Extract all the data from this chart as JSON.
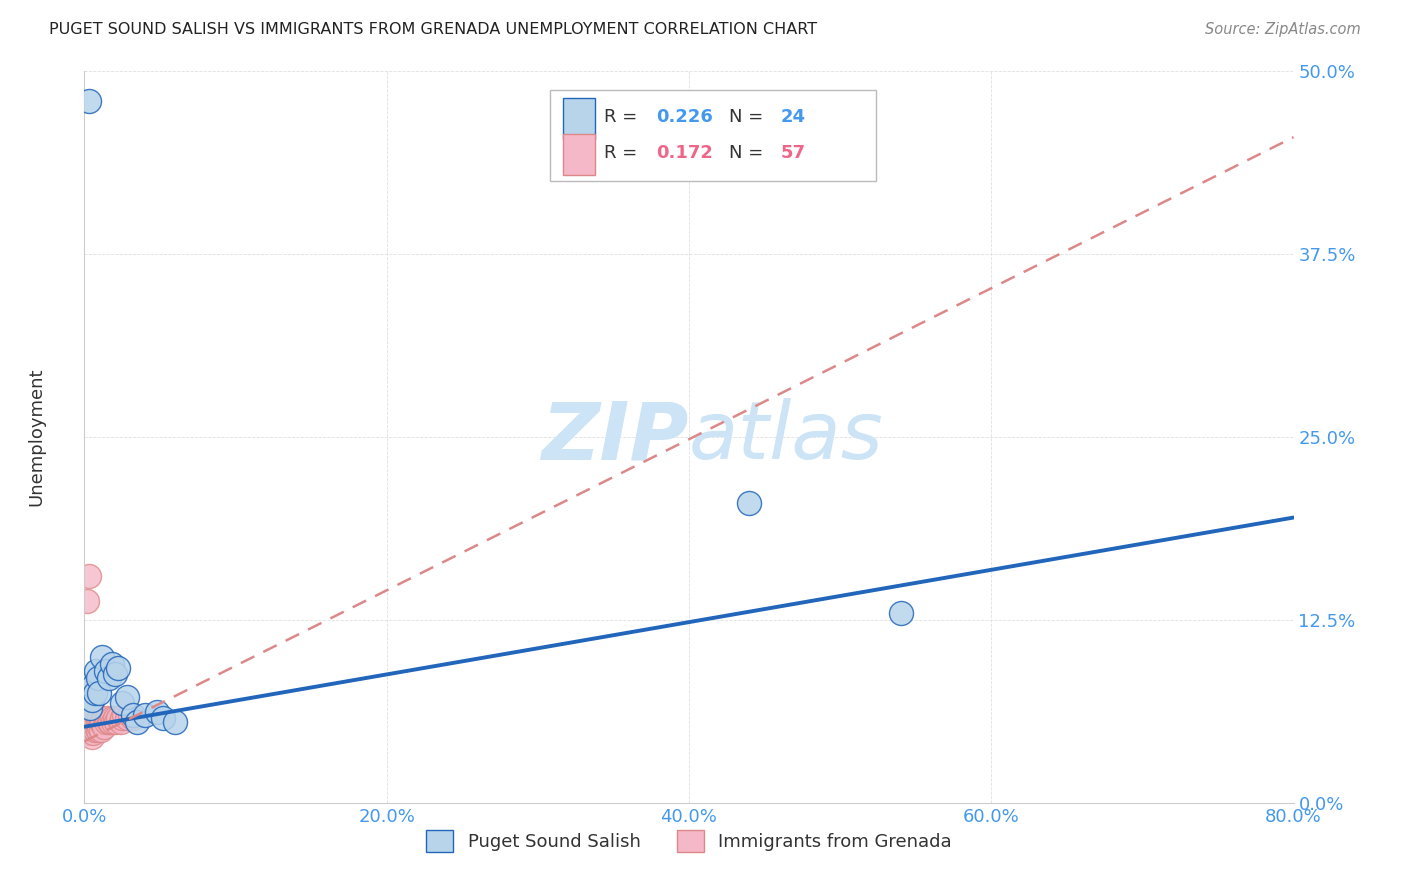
{
  "title": "PUGET SOUND SALISH VS IMMIGRANTS FROM GRENADA UNEMPLOYMENT CORRELATION CHART",
  "source": "Source: ZipAtlas.com",
  "xlabel_ticks": [
    "0.0%",
    "20.0%",
    "40.0%",
    "60.0%",
    "80.0%"
  ],
  "ylabel_ticks": [
    "0.0%",
    "12.5%",
    "25.0%",
    "37.5%",
    "50.0%"
  ],
  "ylabel_label": "Unemployment",
  "xlim": [
    0.0,
    0.8
  ],
  "ylim": [
    0.0,
    0.5
  ],
  "blue_scatter_x": [
    0.003,
    0.004,
    0.005,
    0.006,
    0.007,
    0.008,
    0.009,
    0.01,
    0.012,
    0.014,
    0.016,
    0.018,
    0.02,
    0.022,
    0.025,
    0.028,
    0.032,
    0.035,
    0.04,
    0.048,
    0.052,
    0.06,
    0.44,
    0.54
  ],
  "blue_scatter_y": [
    0.48,
    0.065,
    0.07,
    0.08,
    0.075,
    0.09,
    0.085,
    0.075,
    0.1,
    0.09,
    0.085,
    0.095,
    0.088,
    0.092,
    0.068,
    0.072,
    0.06,
    0.055,
    0.06,
    0.062,
    0.058,
    0.055,
    0.205,
    0.13
  ],
  "pink_scatter_x": [
    0.001,
    0.001,
    0.002,
    0.002,
    0.002,
    0.002,
    0.003,
    0.003,
    0.003,
    0.003,
    0.003,
    0.004,
    0.004,
    0.004,
    0.004,
    0.004,
    0.005,
    0.005,
    0.005,
    0.005,
    0.005,
    0.005,
    0.005,
    0.006,
    0.006,
    0.006,
    0.007,
    0.007,
    0.007,
    0.008,
    0.008,
    0.008,
    0.009,
    0.009,
    0.01,
    0.01,
    0.011,
    0.011,
    0.012,
    0.013,
    0.014,
    0.015,
    0.016,
    0.017,
    0.018,
    0.019,
    0.02,
    0.021,
    0.022,
    0.024,
    0.025,
    0.026,
    0.028,
    0.03,
    0.032,
    0.002,
    0.003
  ],
  "pink_scatter_y": [
    0.07,
    0.08,
    0.055,
    0.06,
    0.065,
    0.075,
    0.05,
    0.055,
    0.058,
    0.062,
    0.068,
    0.048,
    0.052,
    0.058,
    0.062,
    0.068,
    0.045,
    0.05,
    0.055,
    0.06,
    0.062,
    0.065,
    0.07,
    0.048,
    0.052,
    0.058,
    0.05,
    0.055,
    0.06,
    0.052,
    0.055,
    0.06,
    0.05,
    0.055,
    0.052,
    0.058,
    0.05,
    0.055,
    0.055,
    0.052,
    0.055,
    0.058,
    0.055,
    0.055,
    0.058,
    0.055,
    0.058,
    0.055,
    0.058,
    0.055,
    0.058,
    0.06,
    0.058,
    0.06,
    0.058,
    0.138,
    0.155
  ],
  "blue_line_x": [
    0.0,
    0.8
  ],
  "blue_line_y": [
    0.052,
    0.195
  ],
  "pink_line_x": [
    0.0,
    0.8
  ],
  "pink_line_y": [
    0.042,
    0.455
  ],
  "legend_R_blue": "0.226",
  "legend_N_blue": "24",
  "legend_R_pink": "0.172",
  "legend_N_pink": "57",
  "blue_color": "#b8d4ea",
  "pink_color": "#f5b8c8",
  "blue_line_color": "#2266bb",
  "pink_line_color": "#dd8888",
  "blue_text_color": "#4499ee",
  "pink_text_color": "#ee6688",
  "title_color": "#222222",
  "source_color": "#888888",
  "axis_label_color": "#333333",
  "tick_color": "#4499ee",
  "grid_color": "#e0e0e0",
  "watermark_color": "#cce4f5",
  "background_color": "#ffffff"
}
